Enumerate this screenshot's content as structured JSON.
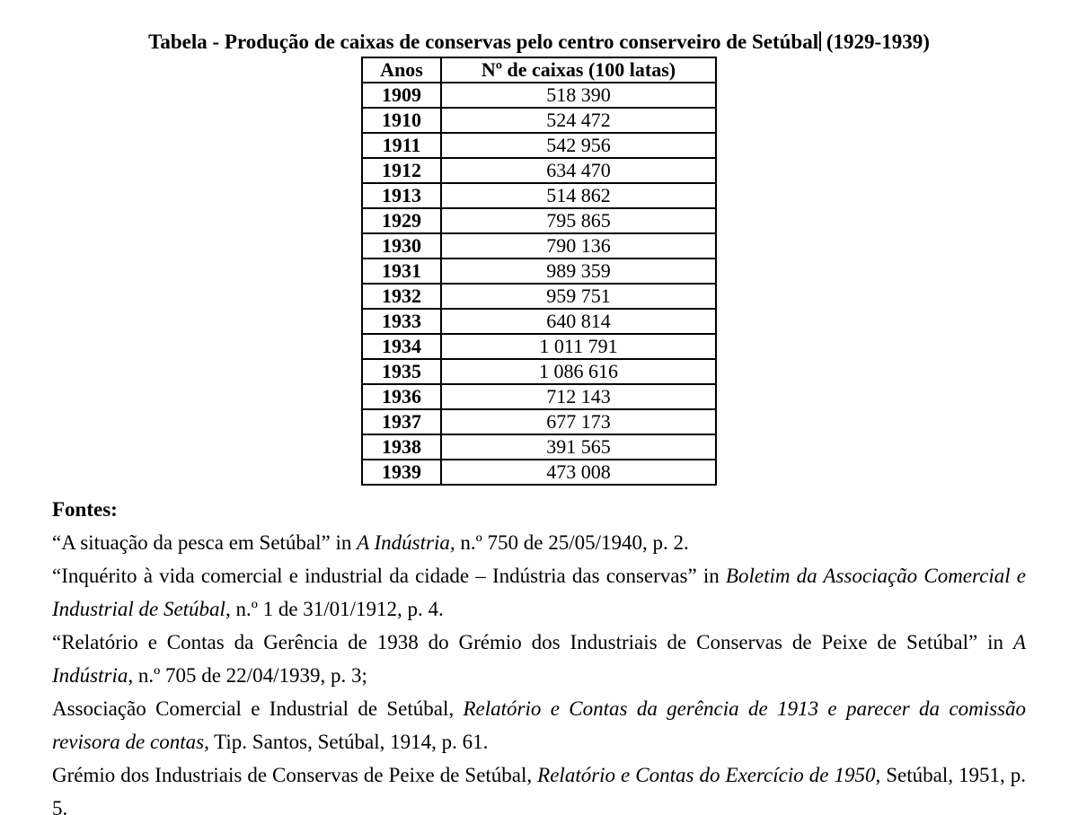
{
  "title": {
    "before_cursor": "Tabela - Produção de caixas de conservas pelo centro conserveiro de Setúbal",
    "after_cursor": " (1929-1939)"
  },
  "table": {
    "headers": [
      "Anos",
      "Nº de caixas (100 latas)"
    ],
    "rows": [
      [
        "1909",
        "518 390"
      ],
      [
        "1910",
        "524 472"
      ],
      [
        "1911",
        "542 956"
      ],
      [
        "1912",
        "634 470"
      ],
      [
        "1913",
        "514 862"
      ],
      [
        "1929",
        "795 865"
      ],
      [
        "1930",
        "790 136"
      ],
      [
        "1931",
        "989 359"
      ],
      [
        "1932",
        "959 751"
      ],
      [
        "1933",
        "640 814"
      ],
      [
        "1934",
        "1 011 791"
      ],
      [
        "1935",
        "1 086 616"
      ],
      [
        "1936",
        "712 143"
      ],
      [
        "1937",
        "677 173"
      ],
      [
        "1938",
        "391 565"
      ],
      [
        "1939",
        "473 008"
      ]
    ]
  },
  "sources": {
    "heading": "Fontes:",
    "items": [
      [
        "“A situação da pesca em Setúbal” in ",
        "A Indústria",
        ", n.º 750 de 25/05/1940, p. 2."
      ],
      [
        "“Inquérito à vida comercial e industrial da cidade – Indústria das conservas” in ",
        "Boletim da Associação Comercial e Industrial de Setúbal",
        ", n.º 1 de 31/01/1912, p. 4."
      ],
      [
        "“Relatório e Contas da Gerência de 1938 do Grémio dos Industriais de Conservas de Peixe de Setúbal” in ",
        "A Indústria",
        ", n.º 705 de 22/04/1939, p. 3;"
      ],
      [
        "Associação Comercial e Industrial de Setúbal, ",
        "Relatório e Contas da gerência de 1913 e parecer da comissão revisora de contas",
        ", Tip. Santos, Setúbal, 1914, p. 61."
      ],
      [
        "Grémio dos Industriais de Conservas de Peixe de Setúbal, ",
        "Relatório e Contas do Exercício de 1950",
        ", Setúbal, 1951, p. 5."
      ]
    ]
  }
}
